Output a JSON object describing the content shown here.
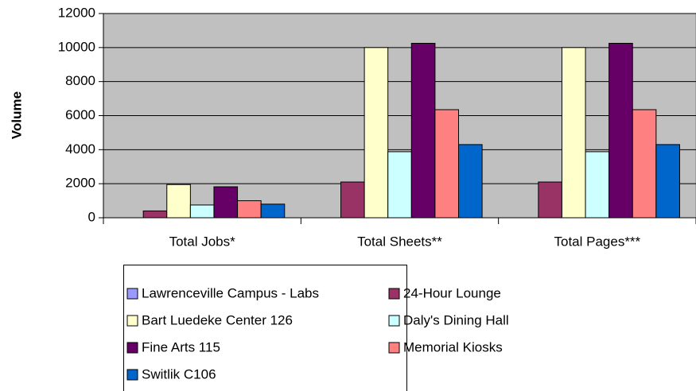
{
  "chart_data": {
    "type": "bar",
    "y_label": "Volume",
    "categories": [
      "Total Jobs*",
      "Total Sheets**",
      "Total Pages***"
    ],
    "series": [
      {
        "name": "Lawrenceville Campus - Labs",
        "color": "#9999ff",
        "values": [
          0,
          0,
          0
        ]
      },
      {
        "name": "24-Hour Lounge",
        "color": "#993366",
        "values": [
          400,
          2100,
          2100
        ]
      },
      {
        "name": "Bart Luedeke Center 126",
        "color": "#ffffcc",
        "values": [
          1950,
          10000,
          10000
        ]
      },
      {
        "name": "Daly's Dining Hall",
        "color": "#ccffff",
        "values": [
          750,
          3880,
          3880
        ]
      },
      {
        "name": "Fine Arts 115",
        "color": "#660066",
        "values": [
          1820,
          10250,
          10250
        ]
      },
      {
        "name": "Memorial Kiosks",
        "color": "#ff8080",
        "values": [
          1000,
          6350,
          6350
        ]
      },
      {
        "name": "Switlik C106",
        "color": "#0066cc",
        "values": [
          800,
          4300,
          4300
        ]
      }
    ],
    "ylim": [
      0,
      12000
    ],
    "yticks": [
      0,
      2000,
      4000,
      6000,
      8000,
      10000,
      12000
    ],
    "plot_background": "#c0c0c0",
    "legend": "bottom"
  }
}
